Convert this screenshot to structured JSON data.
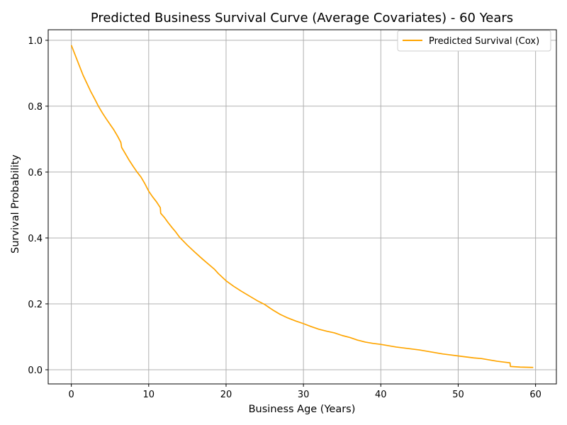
{
  "chart_data": {
    "type": "line",
    "title": "Predicted Business Survival Curve (Average Covariates) - 60 Years",
    "xlabel": "Business Age (Years)",
    "ylabel": "Survival Probability",
    "xlim": [
      -2.99,
      62.69
    ],
    "ylim": [
      -0.043,
      1.032
    ],
    "xticks": [
      0,
      10,
      20,
      30,
      40,
      50,
      60
    ],
    "yticks": [
      0.0,
      0.2,
      0.4,
      0.6,
      0.8,
      1.0
    ],
    "xtick_labels": [
      "0",
      "10",
      "20",
      "30",
      "40",
      "50",
      "60"
    ],
    "ytick_labels": [
      "0.0",
      "0.2",
      "0.4",
      "0.6",
      "0.8",
      "1.0"
    ],
    "grid": true,
    "legend_position": "top-right",
    "colors": {
      "series": "#ffa500",
      "grid": "#b0b0b0",
      "axis": "#000000"
    },
    "series": [
      {
        "name": "Predicted Survival (Cox)",
        "x": [
          0,
          0.5,
          1,
          1.5,
          2,
          2.5,
          3,
          3.5,
          4,
          4.5,
          5,
          5.5,
          6,
          6.4,
          6.5,
          7,
          7.5,
          8,
          8.5,
          9,
          9.5,
          10,
          10.5,
          11,
          11.5,
          11.55,
          12,
          12.5,
          13,
          13.5,
          14,
          15,
          16,
          17,
          18,
          18.5,
          19,
          20,
          21,
          22,
          23,
          24,
          25,
          25.5,
          26,
          27,
          28,
          29,
          30,
          31,
          32,
          33,
          34,
          35,
          36,
          37,
          38,
          39,
          40,
          41,
          42,
          43,
          44,
          45,
          46,
          47,
          48,
          49,
          50,
          51,
          52,
          53,
          54,
          55,
          56,
          56.7,
          56.75,
          58,
          59.7
        ],
        "y": [
          0.985,
          0.955,
          0.925,
          0.895,
          0.87,
          0.845,
          0.823,
          0.8,
          0.78,
          0.762,
          0.745,
          0.728,
          0.708,
          0.69,
          0.675,
          0.655,
          0.635,
          0.617,
          0.6,
          0.585,
          0.565,
          0.542,
          0.525,
          0.51,
          0.492,
          0.475,
          0.463,
          0.447,
          0.432,
          0.418,
          0.402,
          0.378,
          0.356,
          0.335,
          0.315,
          0.305,
          0.292,
          0.27,
          0.253,
          0.238,
          0.224,
          0.21,
          0.198,
          0.19,
          0.182,
          0.168,
          0.157,
          0.148,
          0.14,
          0.131,
          0.123,
          0.117,
          0.112,
          0.104,
          0.098,
          0.09,
          0.084,
          0.08,
          0.077,
          0.073,
          0.069,
          0.066,
          0.063,
          0.06,
          0.056,
          0.052,
          0.048,
          0.045,
          0.042,
          0.039,
          0.036,
          0.034,
          0.03,
          0.026,
          0.023,
          0.021,
          0.01,
          0.008,
          0.007
        ]
      }
    ]
  }
}
